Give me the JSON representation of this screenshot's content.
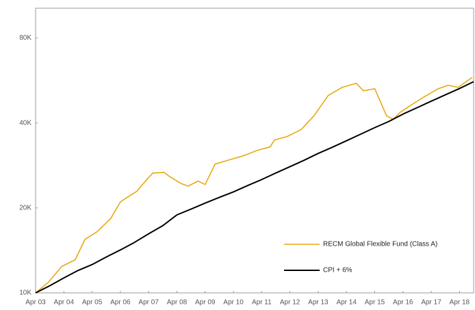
{
  "chart_data": {
    "type": "line",
    "log_scale": true,
    "grid": false,
    "legend": "lower right",
    "xlim": [
      2003.25,
      2018.75
    ],
    "xticks": [
      {
        "value": 2003.25,
        "label": "Apr 03"
      },
      {
        "value": 2004.25,
        "label": "Apr 04"
      },
      {
        "value": 2005.25,
        "label": "Apr 05"
      },
      {
        "value": 2006.25,
        "label": "Apr 06"
      },
      {
        "value": 2007.25,
        "label": "Apr 07"
      },
      {
        "value": 2008.25,
        "label": "Apr 08"
      },
      {
        "value": 2009.25,
        "label": "Apr 09"
      },
      {
        "value": 2010.25,
        "label": "Apr 10"
      },
      {
        "value": 2011.25,
        "label": "Apr 11"
      },
      {
        "value": 2012.25,
        "label": "Apr 12"
      },
      {
        "value": 2013.25,
        "label": "Apr 13"
      },
      {
        "value": 2014.25,
        "label": "Apr 14"
      },
      {
        "value": 2015.25,
        "label": "Apr 15"
      },
      {
        "value": 2016.25,
        "label": "Apr 16"
      },
      {
        "value": 2017.25,
        "label": "Apr 17"
      },
      {
        "value": 2018.25,
        "label": "Apr 18"
      }
    ],
    "ylim": [
      10000,
      102000
    ],
    "yticks": [
      {
        "value": 10000,
        "label": "10K"
      },
      {
        "value": 20000,
        "label": "20K"
      },
      {
        "value": 40000,
        "label": "40K"
      },
      {
        "value": 80000,
        "label": "80K"
      }
    ],
    "series": [
      {
        "name": "RECM Global Flexible Fund (Class A)",
        "color": "#e8a90f",
        "x": [
          2003.25,
          2003.7,
          2004.17,
          2004.65,
          2005.0,
          2005.4,
          2005.9,
          2006.25,
          2006.37,
          2006.83,
          2007.2,
          2007.4,
          2007.8,
          2008.0,
          2008.4,
          2008.65,
          2009.0,
          2009.25,
          2009.6,
          2010.1,
          2010.6,
          2011.1,
          2011.55,
          2011.7,
          2012.15,
          2012.65,
          2013.1,
          2013.6,
          2014.1,
          2014.6,
          2014.85,
          2015.25,
          2015.67,
          2015.9,
          2016.15,
          2016.5,
          2017.0,
          2017.5,
          2017.85,
          2018.2,
          2018.7
        ],
        "values": [
          10000,
          10900,
          12400,
          13100,
          15500,
          16400,
          18300,
          21000,
          21400,
          22900,
          25300,
          26600,
          26700,
          25800,
          24400,
          23900,
          24900,
          24200,
          28600,
          29600,
          30600,
          32000,
          32900,
          34800,
          35800,
          37900,
          42400,
          50000,
          53500,
          55300,
          52000,
          52900,
          42400,
          41200,
          43600,
          46000,
          49500,
          52900,
          54400,
          53500,
          58000
        ]
      },
      {
        "name": "CPI + 6%",
        "color": "#000000",
        "x": [
          2003.25,
          2003.75,
          2004.25,
          2004.75,
          2005.25,
          2005.75,
          2006.25,
          2006.75,
          2007.25,
          2007.75,
          2008.25,
          2008.75,
          2009.25,
          2009.75,
          2010.25,
          2010.75,
          2011.25,
          2011.75,
          2012.25,
          2012.75,
          2013.25,
          2013.75,
          2014.25,
          2014.75,
          2015.25,
          2015.75,
          2016.25,
          2016.75,
          2017.25,
          2017.75,
          2018.25,
          2018.75
        ],
        "values": [
          10000,
          10600,
          11300,
          12000,
          12600,
          13400,
          14200,
          15100,
          16200,
          17300,
          18900,
          19800,
          20800,
          21800,
          22800,
          24000,
          25200,
          26600,
          28000,
          29500,
          31200,
          32800,
          34600,
          36500,
          38500,
          40500,
          43000,
          45300,
          47800,
          50300,
          53000,
          56000
        ]
      }
    ]
  }
}
